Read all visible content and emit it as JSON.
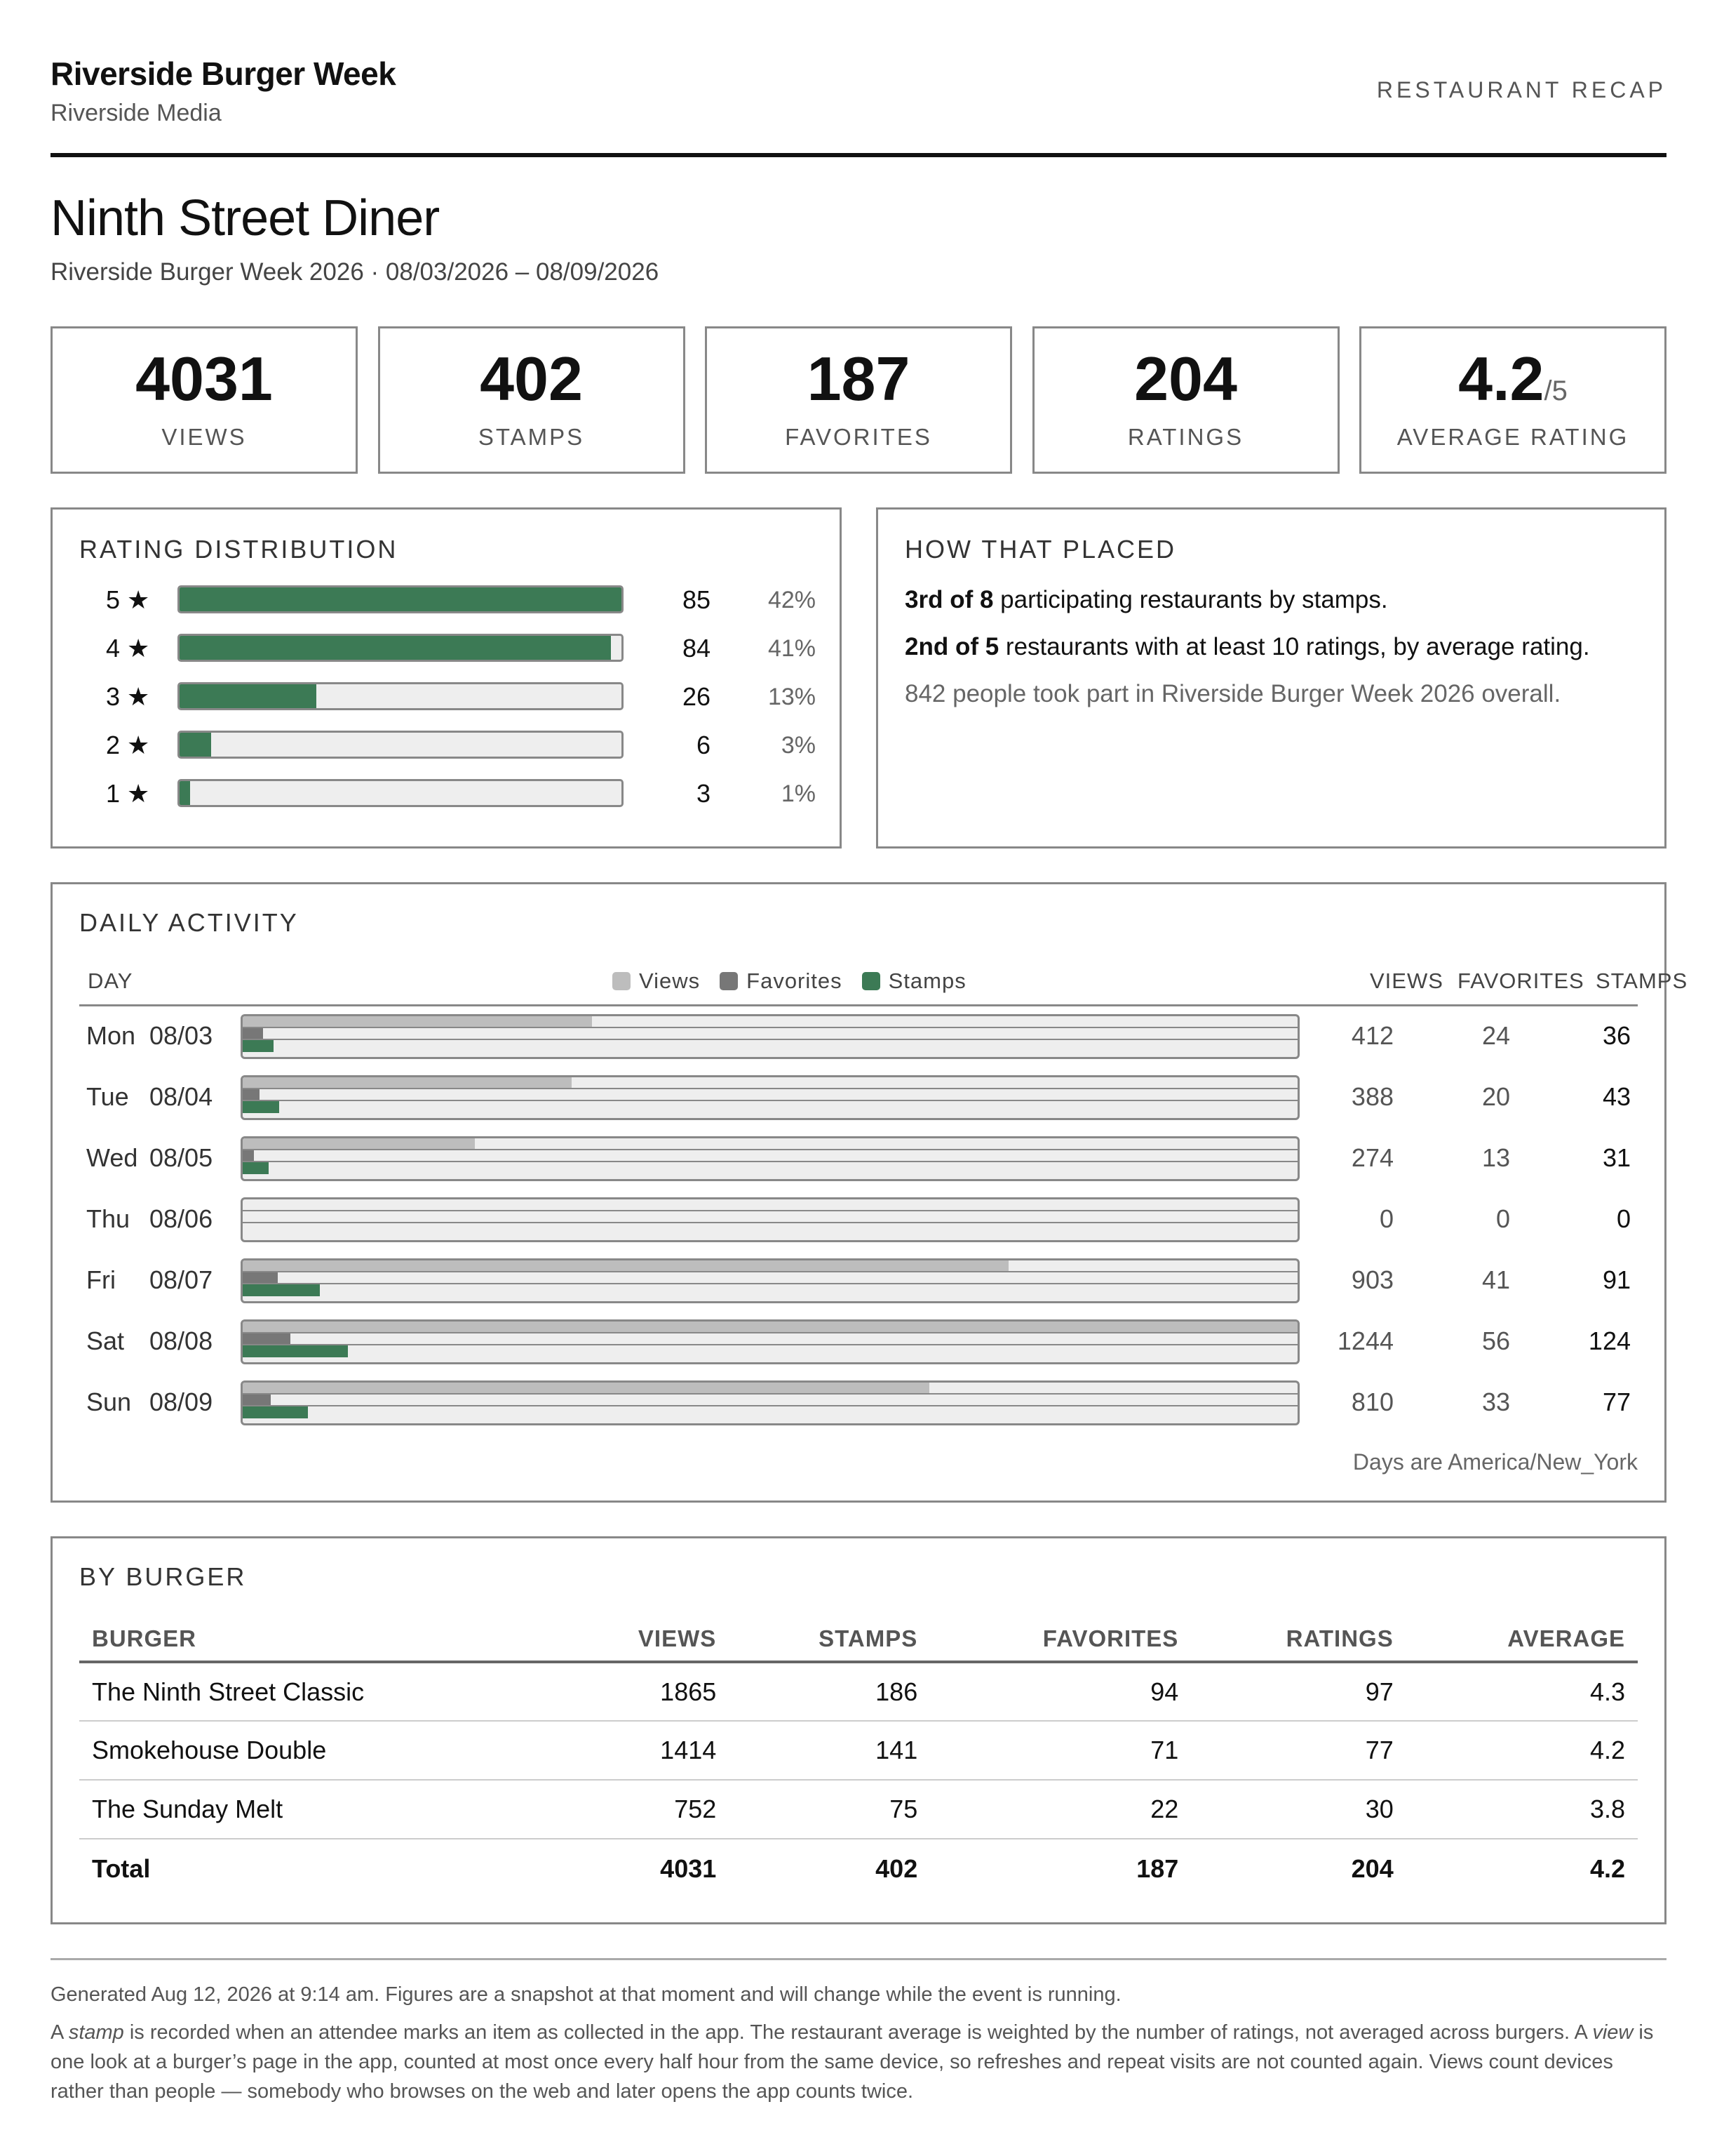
{
  "header": {
    "brand": "Riverside Burger Week",
    "publisher": "Riverside Media",
    "report_kind": "RESTAURANT RECAP"
  },
  "restaurant": {
    "name": "Ninth Street Diner",
    "event_line": "Riverside Burger Week 2026 · 08/03/2026 – 08/09/2026"
  },
  "stats": [
    {
      "value": "4031",
      "label": "VIEWS"
    },
    {
      "value": "402",
      "label": "STAMPS"
    },
    {
      "value": "187",
      "label": "FAVORITES"
    },
    {
      "value": "204",
      "label": "RATINGS"
    },
    {
      "value": "4.2",
      "suffix": "/5",
      "label": "AVERAGE RATING"
    }
  ],
  "rating_distribution": {
    "title": "RATING DISTRIBUTION",
    "rows": [
      {
        "stars": "5",
        "count": "85",
        "pct": "42%",
        "share": 0.42
      },
      {
        "stars": "4",
        "count": "84",
        "pct": "41%",
        "share": 0.41
      },
      {
        "stars": "3",
        "count": "26",
        "pct": "13%",
        "share": 0.13
      },
      {
        "stars": "2",
        "count": "6",
        "pct": "3%",
        "share": 0.03
      },
      {
        "stars": "1",
        "count": "3",
        "pct": "1%",
        "share": 0.01
      }
    ]
  },
  "placement": {
    "title": "HOW THAT PLACED",
    "line1_bold": "3rd of 8",
    "line1_rest": " participating restaurants by stamps.",
    "line2_bold": "2nd of 5",
    "line2_rest": " restaurants with at least 10 ratings, by average rating.",
    "line3": "842 people took part in Riverside Burger Week 2026 overall."
  },
  "daily_activity": {
    "title": "DAILY ACTIVITY",
    "col_day": "DAY",
    "legend": {
      "views": "Views",
      "favorites": "Favorites",
      "stamps": "Stamps"
    },
    "col_views": "VIEWS",
    "col_favorites": "FAVORITES",
    "col_stamps": "STAMPS",
    "colors": {
      "views": "#bdbdbd",
      "favorites": "#777777",
      "stamps": "#3c7a55"
    },
    "max_views": 1244,
    "days": [
      {
        "dow": "Mon",
        "date": "08/03",
        "views": "412",
        "favorites": "24",
        "stamps": "36"
      },
      {
        "dow": "Tue",
        "date": "08/04",
        "views": "388",
        "favorites": "20",
        "stamps": "43"
      },
      {
        "dow": "Wed",
        "date": "08/05",
        "views": "274",
        "favorites": "13",
        "stamps": "31"
      },
      {
        "dow": "Thu",
        "date": "08/06",
        "views": "0",
        "favorites": "0",
        "stamps": "0"
      },
      {
        "dow": "Fri",
        "date": "08/07",
        "views": "903",
        "favorites": "41",
        "stamps": "91"
      },
      {
        "dow": "Sat",
        "date": "08/08",
        "views": "1244",
        "favorites": "56",
        "stamps": "124"
      },
      {
        "dow": "Sun",
        "date": "08/09",
        "views": "810",
        "favorites": "33",
        "stamps": "77"
      }
    ],
    "timezone_note": "Days are America/New_York"
  },
  "by_burger": {
    "title": "BY BURGER",
    "columns": [
      "BURGER",
      "VIEWS",
      "STAMPS",
      "FAVORITES",
      "RATINGS",
      "AVERAGE"
    ],
    "rows": [
      [
        "The Ninth Street Classic",
        "1865",
        "186",
        "94",
        "97",
        "4.3"
      ],
      [
        "Smokehouse Double",
        "1414",
        "141",
        "71",
        "77",
        "4.2"
      ],
      [
        "The Sunday Melt",
        "752",
        "75",
        "22",
        "30",
        "3.8"
      ]
    ],
    "total": [
      "Total",
      "4031",
      "402",
      "187",
      "204",
      "4.2"
    ]
  },
  "footer": {
    "generated": "Generated Aug 12, 2026 at 9:14 am. Figures are a snapshot at that moment and will change while the event is running.",
    "note_a": "A ",
    "stamp_term": "stamp",
    "note_b": " is recorded when an attendee marks an item as collected in the app. The restaurant average is weighted by the number of ratings, not averaged across burgers. A ",
    "view_term": "view",
    "note_c": " is one look at a burger’s page in the app, counted at most once every half hour from the same device, so refreshes and repeat visits are not counted again. Views count devices rather than people — somebody who browses on the web and later opens the app counts twice."
  }
}
